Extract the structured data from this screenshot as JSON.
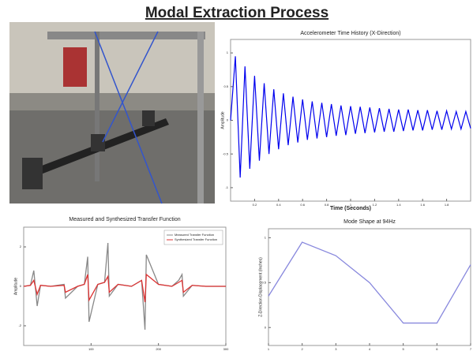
{
  "title": "Modal Extraction Process",
  "chart_data": [
    {
      "type": "line",
      "title": "Accelerometer Time History (X-Direction)",
      "x_label": "Time (Seconds)",
      "y_label": "Amplitude",
      "x": [
        0,
        0.04,
        0.08,
        0.12,
        0.16,
        0.2,
        0.24,
        0.28,
        0.32,
        0.36,
        0.4,
        0.44,
        0.48,
        0.52,
        0.56,
        0.6,
        0.64,
        0.68,
        0.72,
        0.76,
        0.8,
        0.84,
        0.88,
        0.92,
        0.96,
        1,
        1.04,
        1.08,
        1.12,
        1.16,
        1.2,
        1.24,
        1.28,
        1.32,
        1.36,
        1.4,
        1.44,
        1.48,
        1.52,
        1.56,
        1.6,
        1.64,
        1.68,
        1.72,
        1.76,
        1.8,
        1.84,
        1.88,
        1.92,
        1.96,
        2
      ],
      "series": [
        {
          "name": "X-Direction",
          "color": "#0000ee",
          "values": [
            0,
            0.95,
            -0.85,
            0.8,
            -0.72,
            0.66,
            -0.6,
            0.55,
            -0.5,
            0.46,
            -0.43,
            0.4,
            -0.37,
            0.35,
            -0.33,
            0.31,
            -0.29,
            0.28,
            -0.27,
            0.26,
            -0.25,
            0.24,
            -0.23,
            0.22,
            -0.22,
            0.21,
            -0.2,
            0.2,
            -0.19,
            0.19,
            -0.18,
            0.18,
            -0.17,
            0.17,
            -0.17,
            0.16,
            -0.16,
            0.16,
            -0.15,
            0.15,
            -0.15,
            0.15,
            -0.14,
            0.14,
            -0.14,
            0.14,
            -0.13,
            0.13,
            -0.13,
            0.13,
            -0.12
          ]
        }
      ],
      "xlim": [
        0,
        2
      ],
      "xticks": [
        0.2,
        0.4,
        0.6,
        0.8,
        1,
        1.2,
        1.4,
        1.6,
        1.8
      ],
      "ylim": [
        -1.2,
        1.2
      ],
      "yticks": [
        -1,
        -0.5,
        0,
        0.5,
        1
      ]
    },
    {
      "type": "line",
      "title": "Measured and Synthesized Transfer Function",
      "y_label": "Amplitude",
      "legend": "top-right",
      "x": [
        0,
        10,
        15,
        20,
        25,
        40,
        60,
        62,
        80,
        90,
        95,
        97,
        110,
        120,
        125,
        127,
        140,
        160,
        175,
        180,
        182,
        200,
        220,
        230,
        235,
        237,
        250,
        270,
        300
      ],
      "series": [
        {
          "name": "Measured Transfer Function",
          "color": "#888888",
          "values": [
            0,
            0.05,
            0.8,
            -1,
            0.05,
            0,
            0.1,
            -0.6,
            0,
            0.1,
            1.5,
            -1.8,
            0.1,
            0.2,
            2.2,
            -0.5,
            0.1,
            0,
            0.3,
            -2.2,
            1.6,
            0.1,
            0,
            0.3,
            0.6,
            -0.5,
            0.05,
            0,
            0
          ]
        },
        {
          "name": "Synthesized Transfer Function",
          "color": "#dd3333",
          "values": [
            0,
            0.05,
            0.3,
            -0.4,
            0.05,
            0,
            0.05,
            -0.3,
            0,
            0.1,
            0.6,
            -0.7,
            0.1,
            0.2,
            0.5,
            -0.3,
            0.1,
            0,
            0.3,
            -0.8,
            0.6,
            0.1,
            0,
            0.2,
            0.3,
            -0.3,
            0.05,
            0,
            0
          ]
        }
      ],
      "xlim": [
        0,
        300
      ],
      "xticks": [
        100,
        200,
        300
      ],
      "ylim": [
        -3,
        3
      ],
      "yticks": [
        -2,
        0,
        2
      ]
    },
    {
      "type": "line",
      "title": "Mode Shape at 94Hz",
      "y_label": "Z-Direction Displacement (Inches)",
      "x": [
        1,
        2,
        3,
        4,
        5,
        6,
        7
      ],
      "series": [
        {
          "name": "Mode Shape",
          "color": "#8888dd",
          "values": [
            0.35,
            0.95,
            0.8,
            0.5,
            0.05,
            0.05,
            0.7
          ]
        }
      ],
      "xlim": [
        1,
        7
      ],
      "xticks": [
        1,
        2,
        3,
        4,
        5,
        6,
        7
      ],
      "ylim": [
        -0.2,
        1.1
      ],
      "yticks": [
        0,
        0.5,
        1
      ]
    }
  ]
}
